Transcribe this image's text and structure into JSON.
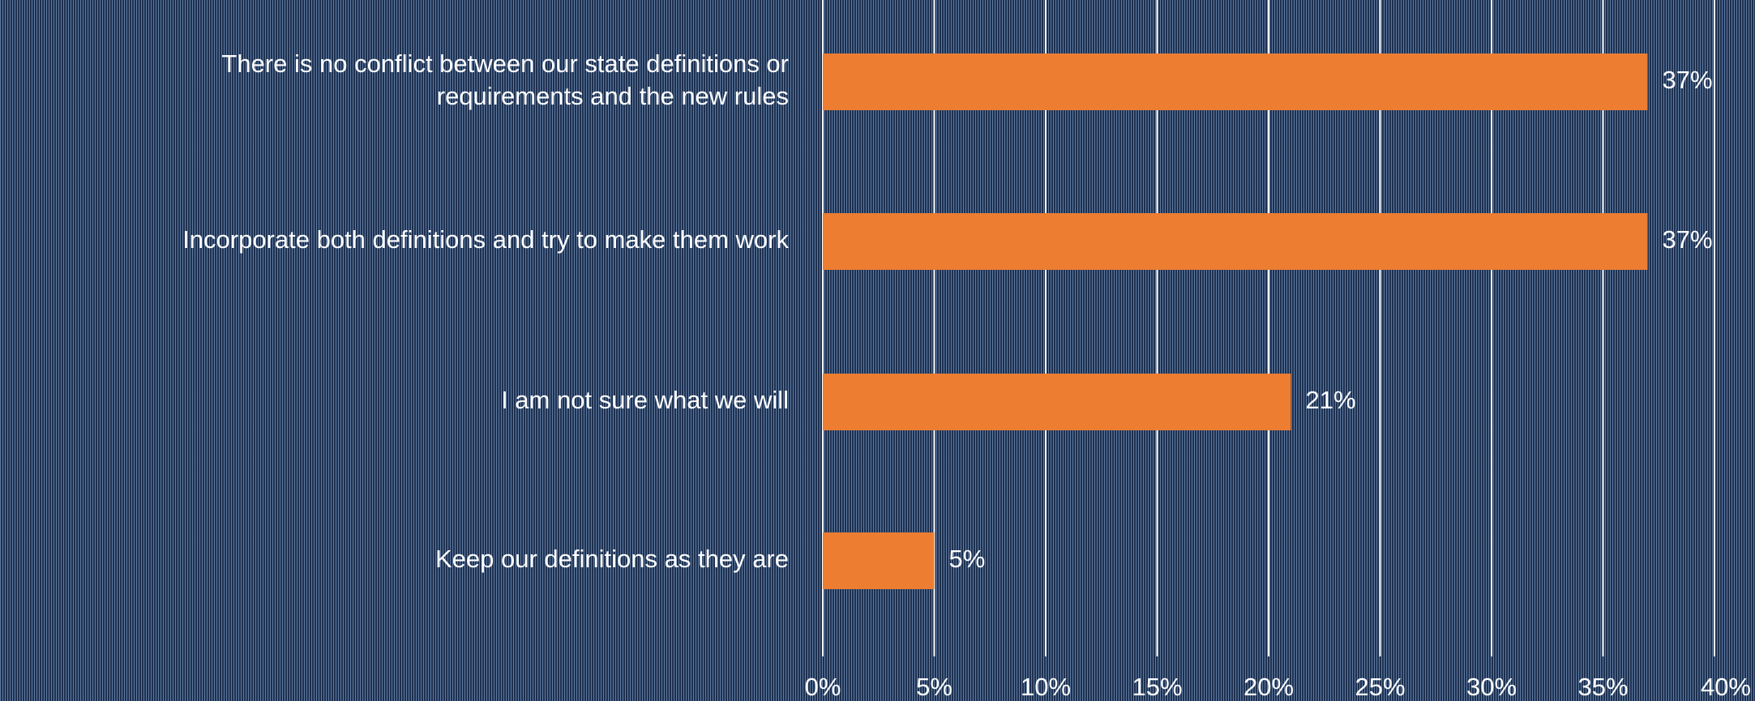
{
  "chart_data": {
    "type": "bar",
    "orientation": "horizontal",
    "categories": [
      [
        "There is no conflict between our state definitions or",
        "requirements and the new rules"
      ],
      [
        "Incorporate both definitions and try to make them work"
      ],
      [
        "I am not sure what we will"
      ],
      [
        "Keep our definitions as they are"
      ]
    ],
    "values": [
      37,
      37,
      21,
      5
    ],
    "value_labels": [
      "37%",
      "37%",
      "21%",
      "5%"
    ],
    "xlim": [
      0,
      40
    ],
    "x_ticks": [
      0,
      5,
      10,
      15,
      20,
      25,
      30,
      35,
      40
    ],
    "x_tick_labels": [
      "0%",
      "5%",
      "10%",
      "15%",
      "20%",
      "25%",
      "30%",
      "35%",
      "40%"
    ],
    "grid": true,
    "bar_color": "#ed7d31",
    "grid_color": "#ffffff",
    "text_color": "#ffffff",
    "background_color": "#1d3050"
  }
}
